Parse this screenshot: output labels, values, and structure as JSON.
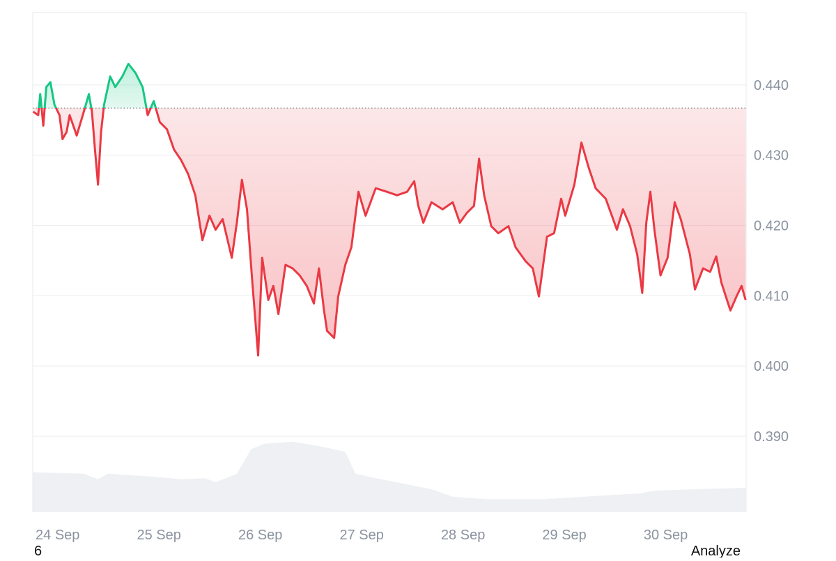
{
  "chart_data": {
    "type": "line",
    "x": [
      -0.01,
      0.04,
      0.06,
      0.09,
      0.12,
      0.16,
      0.2,
      0.25,
      0.28,
      0.32,
      0.35,
      0.42,
      0.49,
      0.54,
      0.57,
      0.6,
      0.63,
      0.66,
      0.69,
      0.75,
      0.8,
      0.87,
      0.93,
      1.0,
      1.07,
      1.12,
      1.18,
      1.24,
      1.31,
      1.38,
      1.45,
      1.52,
      1.59,
      1.66,
      1.73,
      1.79,
      1.86,
      1.95,
      2.0,
      2.05,
      2.1,
      2.15,
      2.21,
      2.25,
      2.31,
      2.36,
      2.41,
      2.48,
      2.55,
      2.62,
      2.69,
      2.76,
      2.81,
      2.86,
      2.89,
      2.96,
      3.0,
      3.07,
      3.13,
      3.2,
      3.27,
      3.37,
      3.48,
      3.58,
      3.68,
      3.75,
      3.79,
      3.84,
      3.92,
      4.03,
      4.13,
      4.2,
      4.27,
      4.34,
      4.39,
      4.44,
      4.51,
      4.58,
      4.68,
      4.75,
      4.85,
      4.92,
      4.98,
      5.06,
      5.13,
      5.2,
      5.24,
      5.33,
      5.4,
      5.47,
      5.54,
      5.64,
      5.75,
      5.81,
      5.88,
      5.95,
      6.0,
      6.04,
      6.08,
      6.12,
      6.18,
      6.25,
      6.32,
      6.38,
      6.47,
      6.52,
      6.6,
      6.67,
      6.73,
      6.78,
      6.87,
      6.93,
      6.98,
      7.02
    ],
    "series": [
      {
        "color": "#ea3943",
        "values": [
          0.4362,
          0.4357,
          0.4387,
          0.4342,
          0.4397,
          0.4404,
          0.4372,
          0.4357,
          0.4323,
          0.4333,
          0.4357,
          0.4328,
          0.4362,
          0.4387,
          0.4362,
          0.4308,
          0.4258,
          0.4333,
          0.4372,
          0.4412,
          0.4397,
          0.4412,
          0.443,
          0.4417,
          0.4397,
          0.4357,
          0.4377,
          0.4347,
          0.4337,
          0.4308,
          0.4293,
          0.4273,
          0.4243,
          0.4179,
          0.4214,
          0.4194,
          0.4209,
          0.4154,
          0.4204,
          0.4265,
          0.4223,
          0.4124,
          0.4015,
          0.4154,
          0.4094,
          0.4114,
          0.4074,
          0.4144,
          0.4139,
          0.4129,
          0.4114,
          0.4089,
          0.4139,
          0.4079,
          0.405,
          0.404,
          0.4099,
          0.4144,
          0.4169,
          0.4248,
          0.4214,
          0.4253,
          0.4248,
          0.4243,
          0.4248,
          0.4263,
          0.4228,
          0.4204,
          0.4233,
          0.4223,
          0.4233,
          0.4204,
          0.4218,
          0.4228,
          0.4295,
          0.4243,
          0.4199,
          0.4189,
          0.4199,
          0.4169,
          0.4149,
          0.4139,
          0.4099,
          0.4184,
          0.4189,
          0.4238,
          0.4214,
          0.4258,
          0.4318,
          0.4283,
          0.4253,
          0.4238,
          0.4194,
          0.4223,
          0.4199,
          0.4159,
          0.4104,
          0.4204,
          0.4248,
          0.4194,
          0.4129,
          0.4154,
          0.4233,
          0.4209,
          0.4159,
          0.4109,
          0.4139,
          0.4134,
          0.4156,
          0.4119,
          0.4079,
          0.4099,
          0.4114,
          0.4094
        ]
      }
    ],
    "up_color": "#16c784",
    "baseline": 0.4367,
    "volume": {
      "axis": "y2",
      "color": "#eef0f3",
      "x": [
        -0.01,
        0.49,
        0.63,
        0.73,
        1.18,
        1.45,
        1.69,
        1.79,
        2.0,
        2.14,
        2.27,
        2.55,
        2.82,
        3.07,
        3.17,
        3.37,
        3.65,
        3.92,
        4.13,
        4.47,
        5.02,
        5.51,
        5.99,
        6.12,
        6.54,
        7.02
      ],
      "values": [
        8.0,
        7.7,
        6.6,
        7.7,
        7.1,
        6.6,
        6.8,
        6.0,
        7.7,
        12.6,
        13.7,
        14.1,
        13.2,
        12.1,
        7.7,
        6.8,
        5.7,
        4.6,
        3.1,
        2.6,
        2.6,
        3.2,
        3.8,
        4.3,
        4.6,
        4.9
      ]
    },
    "xlim": [
      -0.014,
      7.025
    ],
    "xticks": [
      {
        "value": 0,
        "label": "24 Sep"
      },
      {
        "value": 1,
        "label": "25 Sep"
      },
      {
        "value": 2,
        "label": "26 Sep"
      },
      {
        "value": 3,
        "label": "27 Sep"
      },
      {
        "value": 4,
        "label": "28 Sep"
      },
      {
        "value": 5,
        "label": "29 Sep"
      },
      {
        "value": 6,
        "label": "30 Sep"
      }
    ],
    "ylim": [
      0.3792,
      0.4503
    ],
    "yticks": [
      {
        "value": 0.39,
        "label": "0.390"
      },
      {
        "value": 0.4,
        "label": "0.400"
      },
      {
        "value": 0.41,
        "label": "0.410"
      },
      {
        "value": 0.42,
        "label": "0.420"
      },
      {
        "value": 0.43,
        "label": "0.430"
      },
      {
        "value": 0.44,
        "label": "0.440"
      }
    ],
    "y2lim": [
      0,
      100
    ],
    "grid": true
  },
  "footer": {
    "left": "6",
    "right": "Analyze"
  }
}
